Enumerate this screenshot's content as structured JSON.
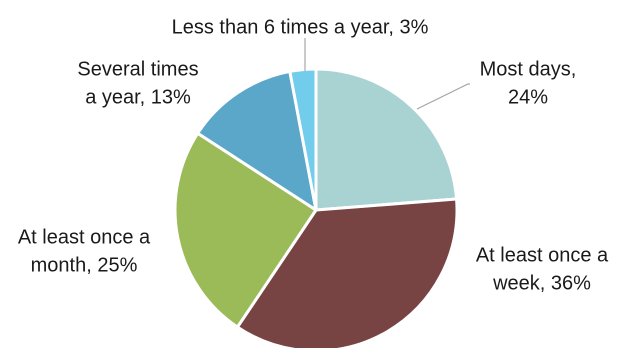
{
  "chart_data": {
    "type": "pie",
    "title": "",
    "start_angle_deg": 0,
    "direction": "clockwise",
    "slices": [
      {
        "name": "Most days",
        "value": 24,
        "percent_label": "24%",
        "color": "#A9D3D2",
        "label_lines": [
          "Most days,",
          "24%"
        ]
      },
      {
        "name": "At least once a week",
        "value": 36,
        "percent_label": "36%",
        "color": "#784443",
        "label_lines": [
          "At least once a",
          "week, 36%"
        ]
      },
      {
        "name": "At least once a month",
        "value": 25,
        "percent_label": "25%",
        "color": "#9BBB59",
        "label_lines": [
          "At least once a",
          "month, 25%"
        ]
      },
      {
        "name": "Several times a year",
        "value": 13,
        "percent_label": "13%",
        "color": "#5BA7C9",
        "label_lines": [
          "Several times",
          "a year, 13%"
        ]
      },
      {
        "name": "Less than 6 times a year",
        "value": 3,
        "percent_label": "3%",
        "color": "#72CCEC",
        "label_lines": [
          "Less than 6 times a year, 3%"
        ]
      }
    ],
    "legend": "none",
    "slice_border_color": "#FFFFFF",
    "leader_line_color": "#A6A6A6"
  }
}
